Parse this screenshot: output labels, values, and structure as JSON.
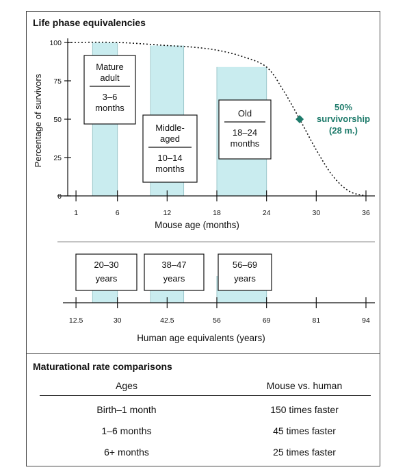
{
  "figure": {
    "title": "Life phase equivalencies",
    "divider_color": "#888888"
  },
  "chart_data": [
    {
      "type": "line",
      "title": "Life phase equivalencies",
      "xlabel": "Mouse age (months)",
      "ylabel": "Percentage of survivors",
      "xticks": [
        1,
        6,
        12,
        18,
        24,
        30,
        36
      ],
      "yticks": [
        0,
        25,
        50,
        75,
        100
      ],
      "xlim": [
        0,
        36
      ],
      "ylim": [
        0,
        100
      ],
      "survival_curve": {
        "x": [
          0,
          6,
          12,
          15,
          18,
          21,
          24,
          26,
          28,
          30,
          32,
          34,
          36
        ],
        "y": [
          100,
          100,
          98,
          97,
          95,
          91,
          84,
          69,
          50,
          30,
          13,
          3,
          0
        ],
        "style": "dotted"
      },
      "phases": [
        {
          "label": [
            "Mature",
            "adult"
          ],
          "range_text": [
            "3–6",
            "months"
          ],
          "start": 3,
          "end": 6,
          "fill_top": 100
        },
        {
          "label": [
            "Middle-",
            "aged"
          ],
          "range_text": [
            "10–14",
            "months"
          ],
          "start": 10,
          "end": 14,
          "fill_top": 98
        },
        {
          "label": [
            "Old"
          ],
          "range_text": [
            "18–24",
            "months"
          ],
          "start": 18,
          "end": 24,
          "fill_top": 84
        }
      ],
      "annotation": {
        "text": [
          "50%",
          "survivorship",
          "(28 m.)"
        ],
        "x": 28,
        "y": 50,
        "color": "#1e7b6b"
      },
      "band_color": "#c9ecef",
      "band_edge_color": "#9cc7cb"
    },
    {
      "type": "axis",
      "xlabel": "Human age equivalents (years)",
      "ticks": [
        {
          "label": "12.5",
          "mouse_month": 1
        },
        {
          "label": "30",
          "mouse_month": 6
        },
        {
          "label": "42.5",
          "mouse_month": 12
        },
        {
          "label": "56",
          "mouse_month": 18
        },
        {
          "label": "69",
          "mouse_month": 24
        },
        {
          "label": "81",
          "mouse_month": 30
        },
        {
          "label": "94",
          "mouse_month": 36
        }
      ],
      "boxes": [
        "20–30",
        "38–47",
        "56–69"
      ],
      "box_unit": "years"
    }
  ],
  "table": {
    "title": "Maturational rate comparisons",
    "headers": [
      "Ages",
      "Mouse vs. human"
    ],
    "rows": [
      [
        "Birth–1 month",
        "150 times faster"
      ],
      [
        "1–6 months",
        "45 times faster"
      ],
      [
        "6+ months",
        "25 times faster"
      ]
    ]
  }
}
